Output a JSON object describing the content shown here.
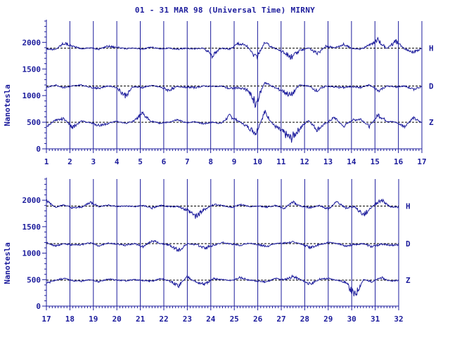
{
  "title": "01 - 31 MAR 98 (Universal Time) MIRNY",
  "colors": {
    "trace": "#1c1c9c",
    "axes": "#1c1c9c",
    "grid": "#1c1c9c",
    "baseline": "#000000",
    "background": "#ffffff"
  },
  "chart_data": [
    {
      "type": "line",
      "panel": "days 1-17",
      "title": "01 - 31 MAR 98 (Universal Time) MIRNY",
      "xlabel": "",
      "ylabel": "Nanotesla",
      "x_ticks": [
        "1",
        "2",
        "3",
        "4",
        "5",
        "6",
        "7",
        "8",
        "9",
        "10",
        "11",
        "12",
        "13",
        "14",
        "15",
        "16",
        "17"
      ],
      "xlim": [
        1,
        17
      ],
      "y_ticks": [
        0,
        500,
        1000,
        1500,
        2000
      ],
      "ylim": [
        0,
        2400
      ],
      "grid": "vertical day lines",
      "series": [
        {
          "name": "H",
          "baseline": 1890,
          "values": [
            1880,
            1860,
            1990,
            1930,
            1880,
            1900,
            1870,
            1930,
            1910,
            1880,
            1890,
            1870,
            1910,
            1880,
            1890,
            1870,
            1890,
            1880,
            1890,
            1750,
            1890,
            1870,
            1990,
            1930,
            1700,
            1990,
            1900,
            1830,
            1720,
            1840,
            1900,
            1780,
            1930,
            1900,
            1960,
            1890,
            1870,
            1950,
            2040,
            1880,
            2020,
            1880,
            1820,
            1880
          ]
        },
        {
          "name": "D",
          "baseline": 1180,
          "values": [
            1150,
            1200,
            1150,
            1180,
            1200,
            1160,
            1140,
            1180,
            1160,
            1000,
            1170,
            1150,
            1190,
            1160,
            1100,
            1170,
            1160,
            1150,
            1180,
            1170,
            1180,
            1130,
            1150,
            1110,
            850,
            1250,
            1160,
            1090,
            1000,
            1200,
            1180,
            1090,
            1180,
            1160,
            1150,
            1170,
            1150,
            1200,
            1090,
            1180,
            1160,
            1180,
            1120,
            1170
          ]
        },
        {
          "name": "Z",
          "baseline": 500,
          "values": [
            420,
            540,
            560,
            400,
            520,
            490,
            440,
            470,
            520,
            480,
            520,
            650,
            520,
            480,
            500,
            540,
            490,
            510,
            470,
            500,
            480,
            620,
            520,
            420,
            300,
            690,
            450,
            320,
            190,
            380,
            540,
            360,
            480,
            590,
            420,
            540,
            560,
            420,
            640,
            520,
            500,
            420,
            580,
            490
          ]
        }
      ]
    },
    {
      "type": "line",
      "panel": "days 17-32",
      "xlabel": "",
      "ylabel": "Nanotesla",
      "x_ticks": [
        "17",
        "18",
        "19",
        "20",
        "21",
        "22",
        "23",
        "24",
        "25",
        "26",
        "27",
        "28",
        "29",
        "30",
        "31",
        "32"
      ],
      "xlim": [
        17,
        32
      ],
      "y_ticks": [
        0,
        500,
        1000,
        1500,
        2000
      ],
      "ylim": [
        0,
        2400
      ],
      "grid": "vertical day lines",
      "series": [
        {
          "name": "H",
          "baseline": 1890,
          "values": [
            1990,
            1870,
            1910,
            1850,
            1870,
            1960,
            1880,
            1910,
            1880,
            1890,
            1880,
            1900,
            1850,
            1900,
            1880,
            1880,
            1810,
            1700,
            1830,
            1920,
            1900,
            1860,
            1920,
            1880,
            1890,
            1870,
            1900,
            1850,
            1960,
            1880,
            1860,
            1900,
            1830,
            1970,
            1850,
            1880,
            1720,
            1880,
            2010,
            1880,
            1870
          ]
        },
        {
          "name": "D",
          "baseline": 1180,
          "values": [
            1200,
            1140,
            1180,
            1150,
            1160,
            1200,
            1140,
            1190,
            1170,
            1150,
            1180,
            1120,
            1240,
            1180,
            1150,
            1050,
            1180,
            1160,
            1100,
            1150,
            1200,
            1170,
            1150,
            1190,
            1160,
            1130,
            1180,
            1190,
            1210,
            1170,
            1110,
            1160,
            1200,
            1180,
            1140,
            1160,
            1180,
            1120,
            1170,
            1150,
            1160
          ]
        },
        {
          "name": "Z",
          "baseline": 490,
          "values": [
            430,
            490,
            520,
            480,
            470,
            500,
            460,
            510,
            490,
            480,
            500,
            480,
            470,
            520,
            470,
            380,
            560,
            450,
            410,
            520,
            500,
            480,
            540,
            490,
            470,
            460,
            520,
            500,
            560,
            490,
            410,
            510,
            520,
            490,
            450,
            200,
            500,
            460,
            540,
            470,
            490
          ]
        }
      ]
    }
  ]
}
